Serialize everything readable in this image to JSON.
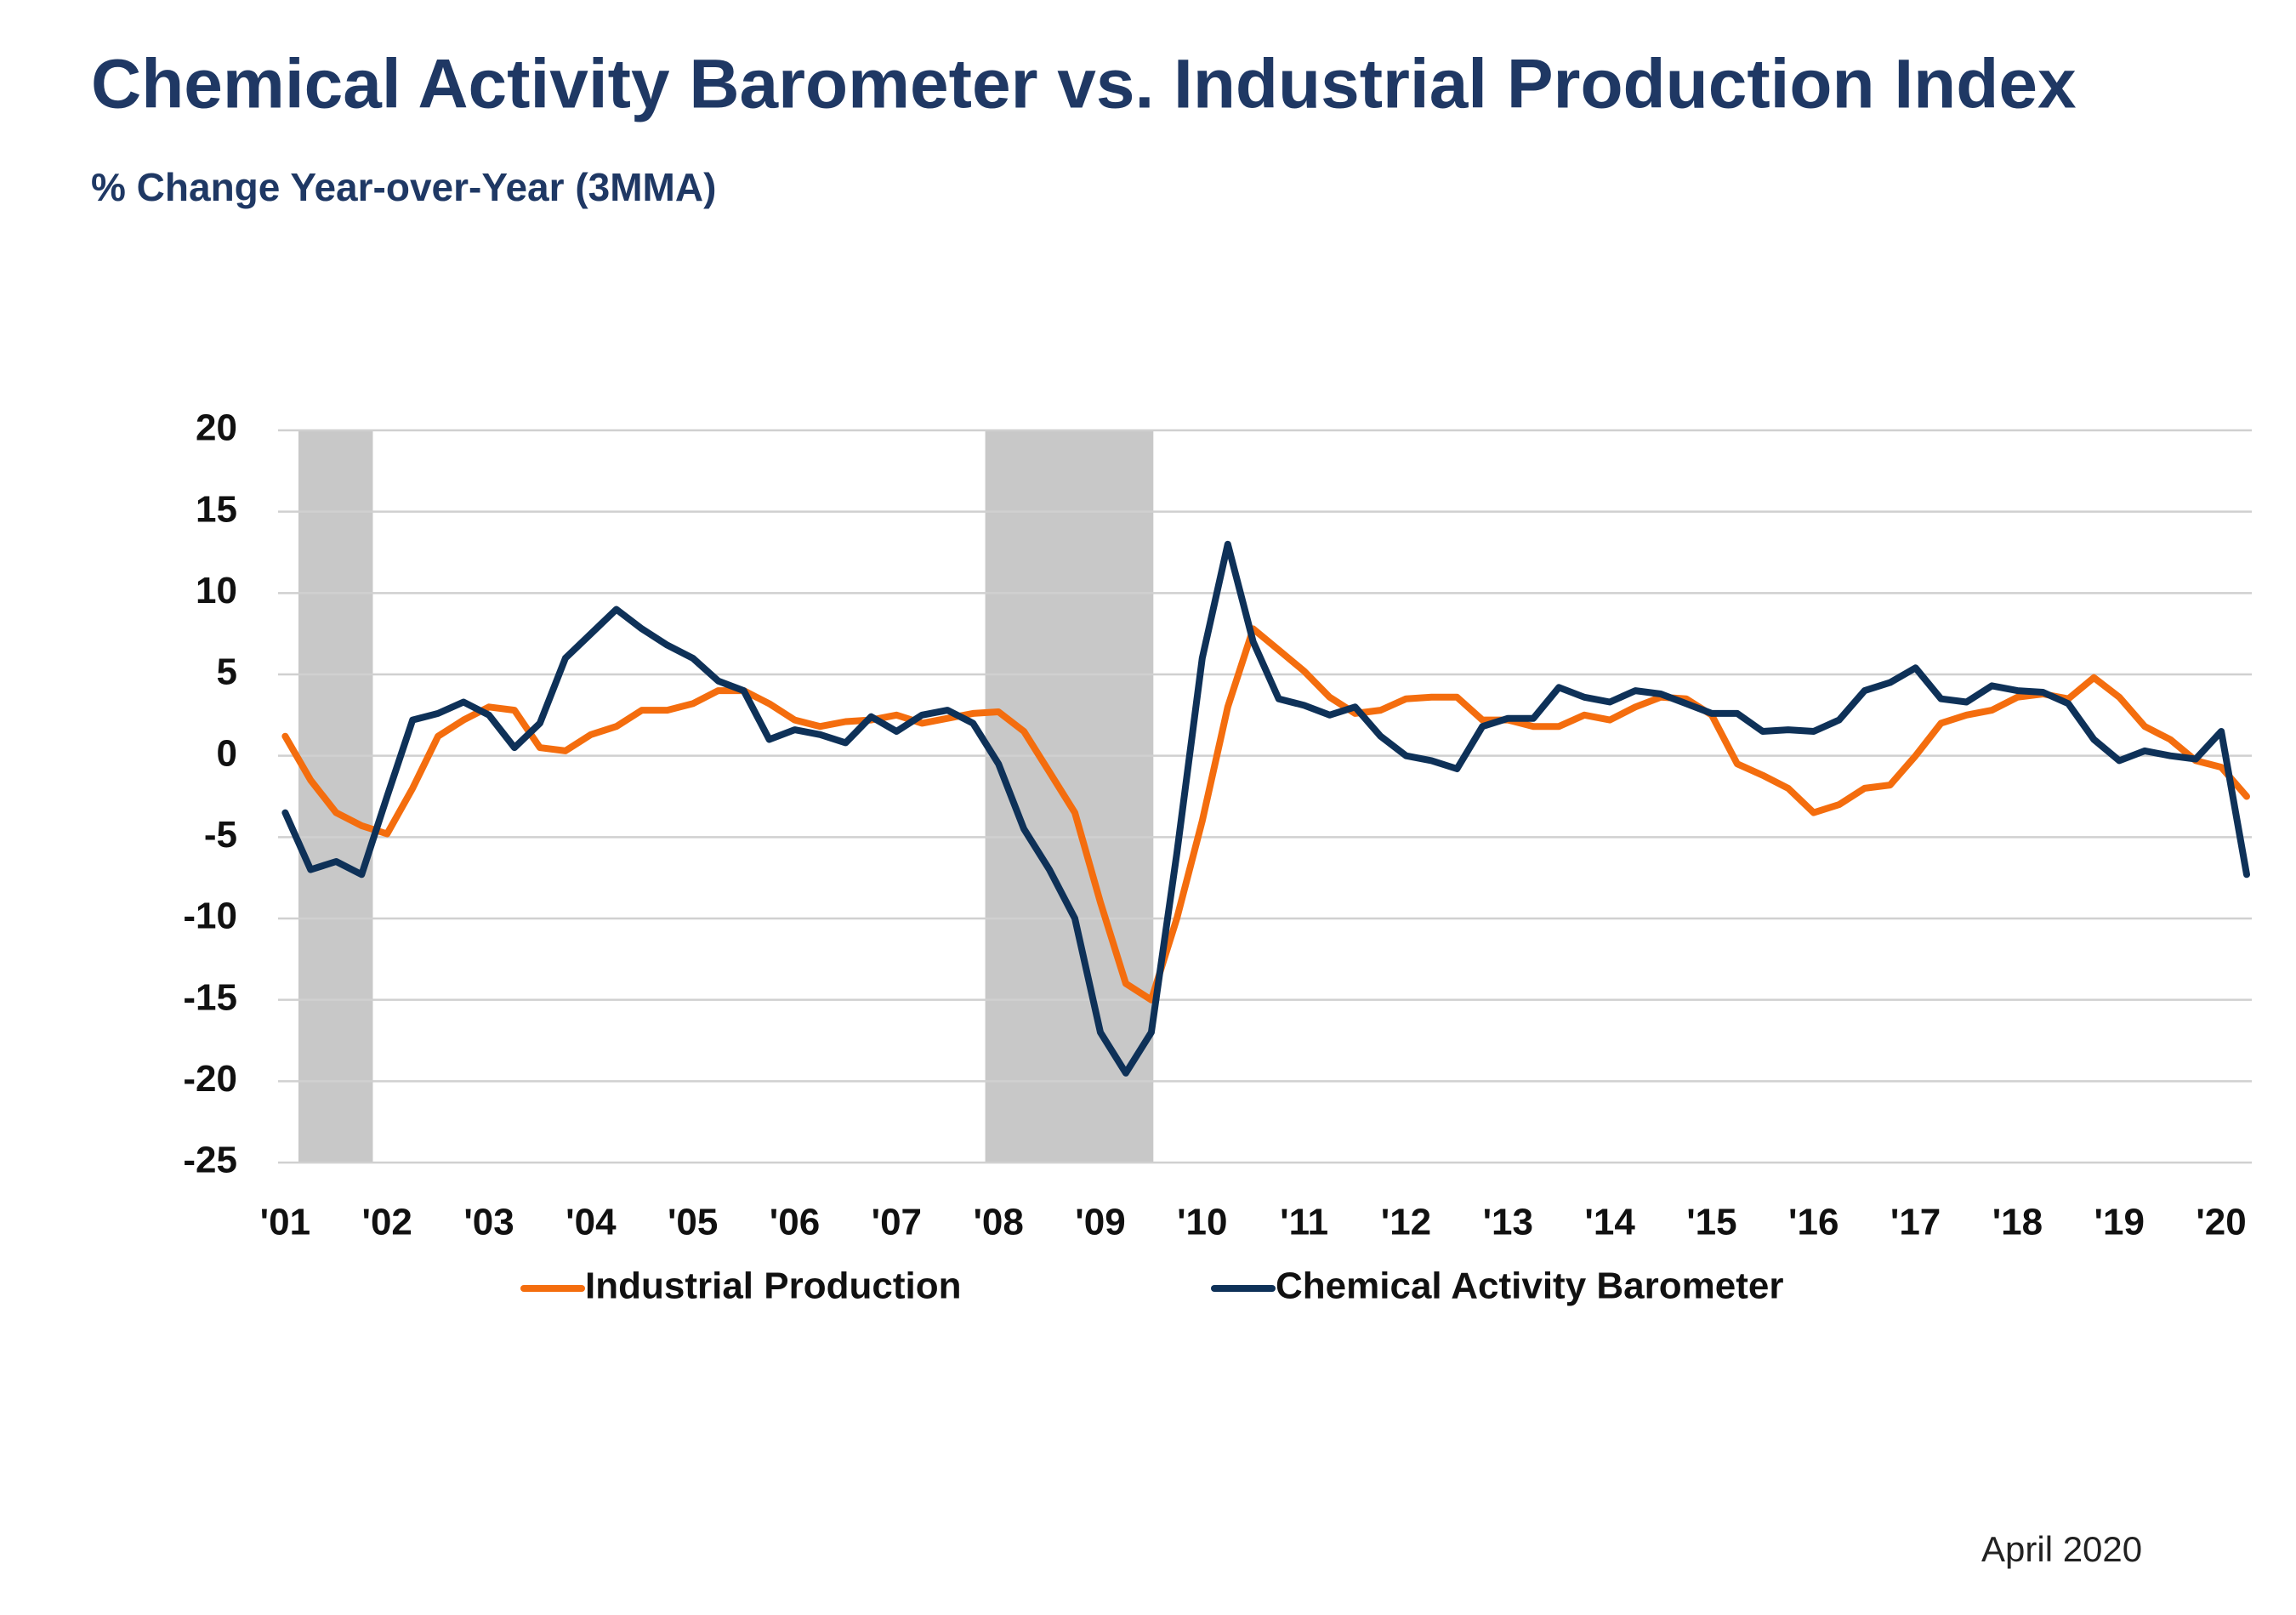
{
  "chart_data": {
    "type": "line",
    "title": "Chemical Activity Barometer vs. Industrial Production Index",
    "subtitle": "% Change Year-over-Year (3MMA)",
    "note": "April 2020",
    "x": [
      2001,
      2001.25,
      2001.5,
      2001.75,
      2002,
      2002.25,
      2002.5,
      2002.75,
      2003,
      2003.25,
      2003.5,
      2003.75,
      2004,
      2004.25,
      2004.5,
      2004.75,
      2005,
      2005.25,
      2005.5,
      2005.75,
      2006,
      2006.25,
      2006.5,
      2006.75,
      2007,
      2007.25,
      2007.5,
      2007.75,
      2008,
      2008.25,
      2008.5,
      2008.75,
      2009,
      2009.25,
      2009.5,
      2009.75,
      2010,
      2010.25,
      2010.5,
      2010.75,
      2011,
      2011.25,
      2011.5,
      2011.75,
      2012,
      2012.25,
      2012.5,
      2012.75,
      2013,
      2013.25,
      2013.5,
      2013.75,
      2014,
      2014.25,
      2014.5,
      2014.75,
      2015,
      2015.25,
      2015.5,
      2015.75,
      2016,
      2016.25,
      2016.5,
      2016.75,
      2017,
      2017.25,
      2017.5,
      2017.75,
      2018,
      2018.25,
      2018.5,
      2018.75,
      2019,
      2019.25,
      2019.5,
      2019.75,
      2020,
      2020.25
    ],
    "series": [
      {
        "name": "Industrial Production",
        "color": "#f46d0e",
        "values": [
          1.2,
          -1.5,
          -3.5,
          -4.3,
          -4.8,
          -2,
          1.2,
          2.2,
          3,
          2.8,
          0.5,
          0.3,
          1.3,
          1.8,
          2.8,
          2.8,
          3.2,
          4,
          4,
          3.2,
          2.2,
          1.8,
          2.1,
          2.2,
          2.5,
          2,
          2.3,
          2.6,
          2.7,
          1.5,
          -1,
          -3.5,
          -9,
          -14,
          -15,
          -10,
          -4,
          3,
          7.8,
          6.5,
          5.2,
          3.6,
          2.6,
          2.8,
          3.5,
          3.6,
          3.6,
          2.2,
          2.2,
          1.8,
          1.8,
          2.5,
          2.2,
          3,
          3.6,
          3.5,
          2.5,
          -0.5,
          -1.2,
          -2,
          -3.5,
          -3,
          -2,
          -1.8,
          0,
          2,
          2.5,
          2.8,
          3.6,
          3.8,
          3.5,
          4.8,
          3.6,
          1.8,
          1,
          -0.3,
          -0.7,
          -2.5
        ]
      },
      {
        "name": "Chemical Activity Barometer",
        "color": "#0e3158",
        "values": [
          -3.5,
          -7,
          -6.5,
          -7.3,
          -2.5,
          2.2,
          2.6,
          3.3,
          2.5,
          0.5,
          2,
          6,
          7.5,
          9,
          7.8,
          6.8,
          6,
          4.6,
          4,
          1,
          1.6,
          1.3,
          0.8,
          2.4,
          1.5,
          2.5,
          2.8,
          2,
          -0.5,
          -4.5,
          -7,
          -10,
          -17,
          -19.5,
          -17,
          -6,
          6,
          13,
          7,
          3.5,
          3.1,
          2.5,
          3,
          1.2,
          0,
          -0.3,
          -0.8,
          1.8,
          2.3,
          2.3,
          4.2,
          3.6,
          3.3,
          4,
          3.8,
          3.2,
          2.6,
          2.6,
          1.5,
          1.6,
          1.5,
          2.2,
          4,
          4.5,
          5.4,
          3.5,
          3.3,
          4.3,
          4,
          3.9,
          3.2,
          1,
          -0.3,
          0.3,
          0,
          -0.2,
          1.5,
          -7.3
        ]
      }
    ],
    "recessions": [
      [
        2001.13,
        2001.86
      ],
      [
        2007.87,
        2009.52
      ]
    ],
    "recession_color": "#c8c8c8",
    "xlim": [
      2000.93,
      2020.3
    ],
    "xticks": [
      {
        "value": 2001,
        "label": "'01"
      },
      {
        "value": 2002,
        "label": "'02"
      },
      {
        "value": 2003,
        "label": "'03"
      },
      {
        "value": 2004,
        "label": "'04"
      },
      {
        "value": 2005,
        "label": "'05"
      },
      {
        "value": 2006,
        "label": "'06"
      },
      {
        "value": 2007,
        "label": "'07"
      },
      {
        "value": 2008,
        "label": "'08"
      },
      {
        "value": 2009,
        "label": "'09"
      },
      {
        "value": 2010,
        "label": "'10"
      },
      {
        "value": 2011,
        "label": "'11"
      },
      {
        "value": 2012,
        "label": "'12"
      },
      {
        "value": 2013,
        "label": "'13"
      },
      {
        "value": 2014,
        "label": "'14"
      },
      {
        "value": 2015,
        "label": "'15"
      },
      {
        "value": 2016,
        "label": "'16"
      },
      {
        "value": 2017,
        "label": "'17"
      },
      {
        "value": 2018,
        "label": "'18"
      },
      {
        "value": 2019,
        "label": "'19"
      },
      {
        "value": 2020,
        "label": "'20"
      }
    ],
    "ylim": [
      -25,
      20
    ],
    "yticks": [
      -25,
      -20,
      -15,
      -10,
      -5,
      0,
      5,
      10,
      15,
      20
    ],
    "grid": true
  }
}
